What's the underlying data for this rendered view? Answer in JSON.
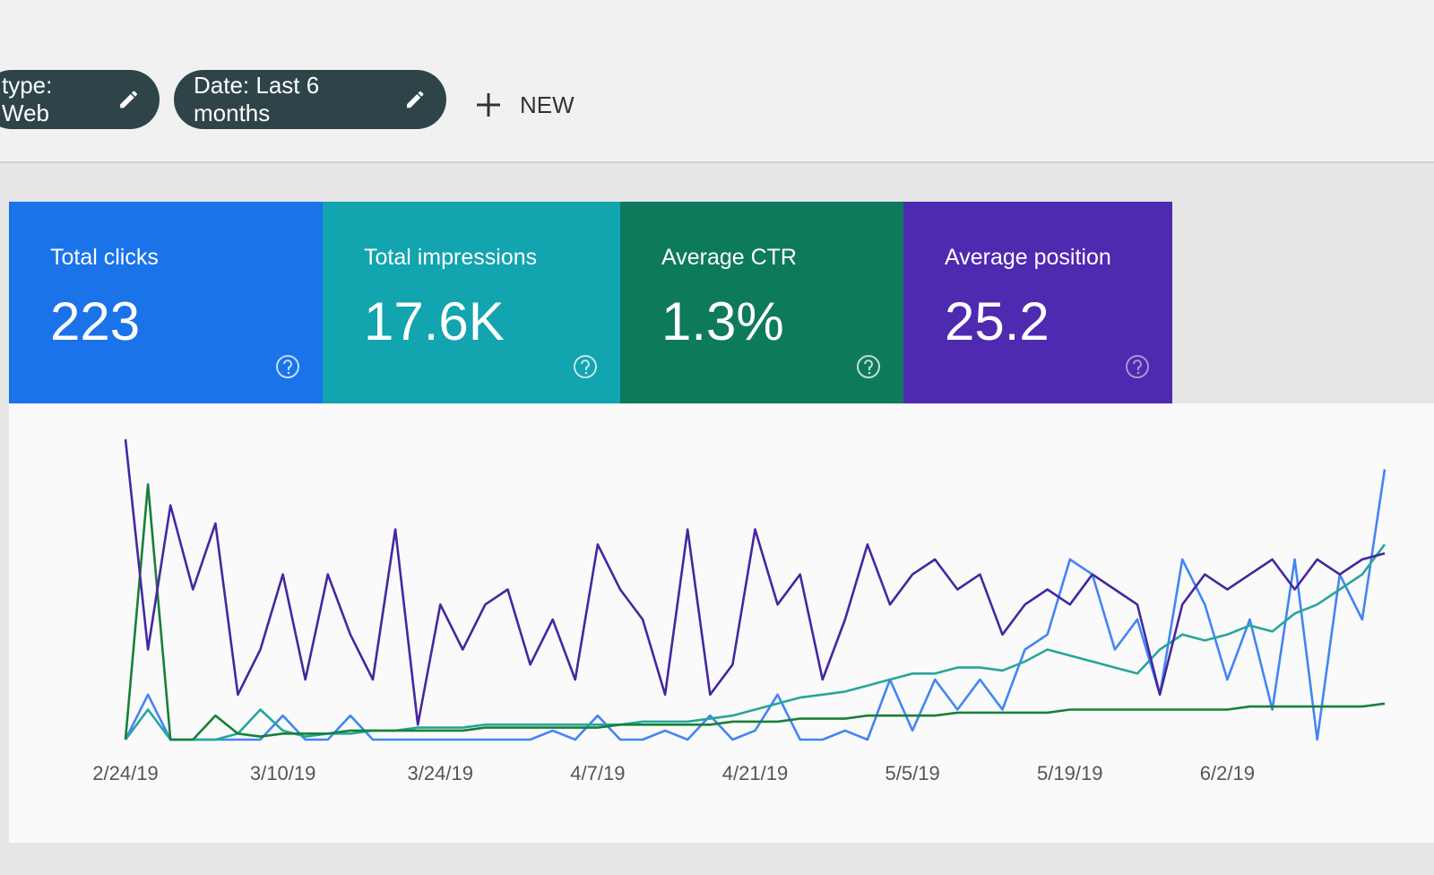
{
  "filters": [
    "type: Web",
    "Date: Last 6 months"
  ],
  "new_button": "NEW",
  "metrics": [
    {
      "label": "Total clicks",
      "value": "223"
    },
    {
      "label": "Total impressions",
      "value": "17.6K"
    },
    {
      "label": "Average CTR",
      "value": "1.3%"
    },
    {
      "label": "Average position",
      "value": "25.2"
    }
  ],
  "chart_data": {
    "type": "line",
    "categories": [
      "2/24/19",
      null,
      null,
      null,
      null,
      null,
      null,
      "3/10/19",
      null,
      null,
      null,
      null,
      null,
      null,
      "3/24/19",
      null,
      null,
      null,
      null,
      null,
      null,
      "4/7/19",
      null,
      null,
      null,
      null,
      null,
      null,
      "4/21/19",
      null,
      null,
      null,
      null,
      null,
      null,
      "5/5/19",
      null,
      null,
      null,
      null,
      null,
      null,
      "5/19/19",
      null,
      null,
      null,
      null,
      null,
      null,
      "6/2/19",
      null,
      null,
      null,
      null,
      null,
      null,
      null
    ],
    "series": [
      {
        "color": "#4285f4",
        "values": [
          0,
          15,
          0,
          0,
          0,
          0,
          0,
          8,
          0,
          0,
          8,
          0,
          0,
          0,
          0,
          0,
          0,
          0,
          0,
          3,
          0,
          8,
          0,
          0,
          3,
          0,
          8,
          0,
          3,
          15,
          0,
          0,
          3,
          0,
          20,
          3,
          20,
          10,
          20,
          10,
          30,
          35,
          60,
          55,
          30,
          40,
          15,
          60,
          45,
          20,
          40,
          10,
          60,
          0,
          55,
          40,
          90
        ]
      },
      {
        "color": "#26a69a",
        "values": [
          0,
          10,
          0,
          0,
          0,
          2,
          10,
          3,
          1,
          2,
          2,
          3,
          3,
          4,
          4,
          4,
          5,
          5,
          5,
          5,
          5,
          5,
          5,
          6,
          6,
          6,
          7,
          8,
          10,
          12,
          14,
          15,
          16,
          18,
          20,
          22,
          22,
          24,
          24,
          23,
          26,
          30,
          28,
          26,
          24,
          22,
          30,
          35,
          33,
          35,
          38,
          36,
          42,
          45,
          50,
          55,
          65
        ]
      },
      {
        "color": "#188038",
        "values": [
          0,
          85,
          0,
          0,
          8,
          2,
          1,
          2,
          2,
          2,
          3,
          3,
          3,
          3,
          3,
          3,
          4,
          4,
          4,
          4,
          4,
          4,
          5,
          5,
          5,
          5,
          5,
          6,
          6,
          6,
          7,
          7,
          7,
          8,
          8,
          8,
          8,
          9,
          9,
          9,
          9,
          9,
          10,
          10,
          10,
          10,
          10,
          10,
          10,
          10,
          11,
          11,
          11,
          11,
          11,
          11,
          12
        ]
      },
      {
        "color": "#4527a0",
        "values": [
          100,
          30,
          78,
          50,
          72,
          15,
          30,
          55,
          20,
          55,
          35,
          20,
          70,
          5,
          45,
          30,
          45,
          50,
          25,
          40,
          20,
          65,
          50,
          40,
          15,
          70,
          15,
          25,
          70,
          45,
          55,
          20,
          40,
          65,
          45,
          55,
          60,
          50,
          55,
          35,
          45,
          50,
          45,
          55,
          50,
          45,
          15,
          45,
          55,
          50,
          55,
          60,
          50,
          60,
          55,
          60,
          62
        ]
      }
    ]
  }
}
